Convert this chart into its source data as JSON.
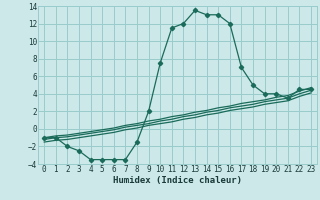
{
  "xlabel": "Humidex (Indice chaleur)",
  "bg_color": "#cce8e8",
  "grid_color": "#99cccc",
  "line_color": "#1a6b5a",
  "xlim": [
    -0.5,
    23.5
  ],
  "ylim": [
    -4,
    14
  ],
  "xticks": [
    0,
    1,
    2,
    3,
    4,
    5,
    6,
    7,
    8,
    9,
    10,
    11,
    12,
    13,
    14,
    15,
    16,
    17,
    18,
    19,
    20,
    21,
    22,
    23
  ],
  "yticks": [
    -4,
    -2,
    0,
    2,
    4,
    6,
    8,
    10,
    12,
    14
  ],
  "curve1_x": [
    0,
    1,
    2,
    3,
    4,
    5,
    6,
    7,
    8,
    9,
    10,
    11,
    12,
    13,
    14,
    15,
    16,
    17,
    18,
    19,
    20,
    21,
    22,
    23
  ],
  "curve1_y": [
    -1,
    -1,
    -2,
    -2.5,
    -3.5,
    -3.5,
    -3.5,
    -3.5,
    -1.5,
    2,
    7.5,
    11.5,
    12,
    13.5,
    13,
    13,
    12,
    7,
    5,
    4,
    4,
    3.5,
    4.5,
    4.5
  ],
  "curve2_x": [
    0,
    1,
    2,
    3,
    4,
    5,
    6,
    7,
    8,
    9,
    10,
    11,
    12,
    13,
    14,
    15,
    16,
    17,
    18,
    19,
    20,
    21,
    22,
    23
  ],
  "curve2_y": [
    -1.0,
    -0.8,
    -0.7,
    -0.5,
    -0.3,
    -0.1,
    0.1,
    0.4,
    0.6,
    0.9,
    1.1,
    1.4,
    1.6,
    1.9,
    2.1,
    2.4,
    2.6,
    2.9,
    3.1,
    3.3,
    3.6,
    3.8,
    4.3,
    4.7
  ],
  "curve3_x": [
    0,
    1,
    2,
    3,
    4,
    5,
    6,
    7,
    8,
    9,
    10,
    11,
    12,
    13,
    14,
    15,
    16,
    17,
    18,
    19,
    20,
    21,
    22,
    23
  ],
  "curve3_y": [
    -1.2,
    -1.0,
    -0.9,
    -0.7,
    -0.5,
    -0.3,
    -0.1,
    0.2,
    0.4,
    0.6,
    0.9,
    1.1,
    1.4,
    1.6,
    1.9,
    2.1,
    2.4,
    2.6,
    2.8,
    3.1,
    3.3,
    3.5,
    4.0,
    4.4
  ],
  "curve4_x": [
    0,
    1,
    2,
    3,
    4,
    5,
    6,
    7,
    8,
    9,
    10,
    11,
    12,
    13,
    14,
    15,
    16,
    17,
    18,
    19,
    20,
    21,
    22,
    23
  ],
  "curve4_y": [
    -1.5,
    -1.3,
    -1.2,
    -1.0,
    -0.8,
    -0.6,
    -0.4,
    -0.1,
    0.1,
    0.4,
    0.6,
    0.8,
    1.1,
    1.3,
    1.6,
    1.8,
    2.1,
    2.3,
    2.5,
    2.8,
    3.0,
    3.2,
    3.7,
    4.1
  ]
}
